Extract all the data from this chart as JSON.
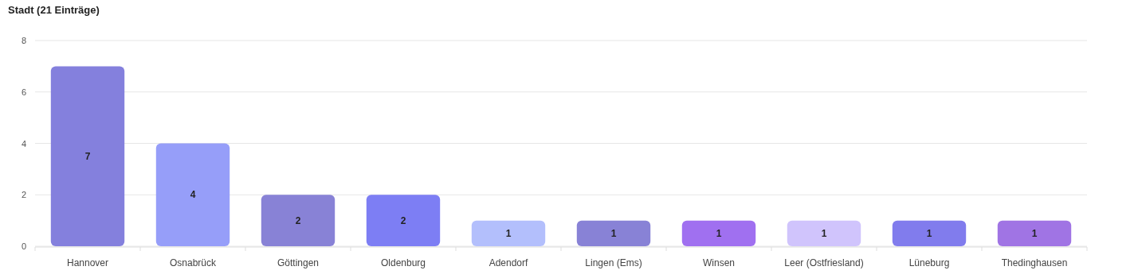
{
  "chart_data": {
    "type": "bar",
    "title": "Stadt (21 Einträge)",
    "categories": [
      "Hannover",
      "Osnabrück",
      "Göttingen",
      "Oldenburg",
      "Adendorf",
      "Lingen (Ems)",
      "Winsen",
      "Leer (Ostfriesland)",
      "Lüneburg",
      "Thedinghausen"
    ],
    "values": [
      7,
      4,
      2,
      2,
      1,
      1,
      1,
      1,
      1,
      1
    ],
    "colors": [
      "#8480dd",
      "#969ef9",
      "#8882d6",
      "#7d7ef4",
      "#b3bffc",
      "#8882d6",
      "#a070f0",
      "#d0c4fc",
      "#817ced",
      "#a074e4"
    ],
    "ylim": [
      0,
      8
    ],
    "yticks": [
      0,
      2,
      4,
      6,
      8
    ],
    "grid": "y",
    "data_labels": true
  }
}
